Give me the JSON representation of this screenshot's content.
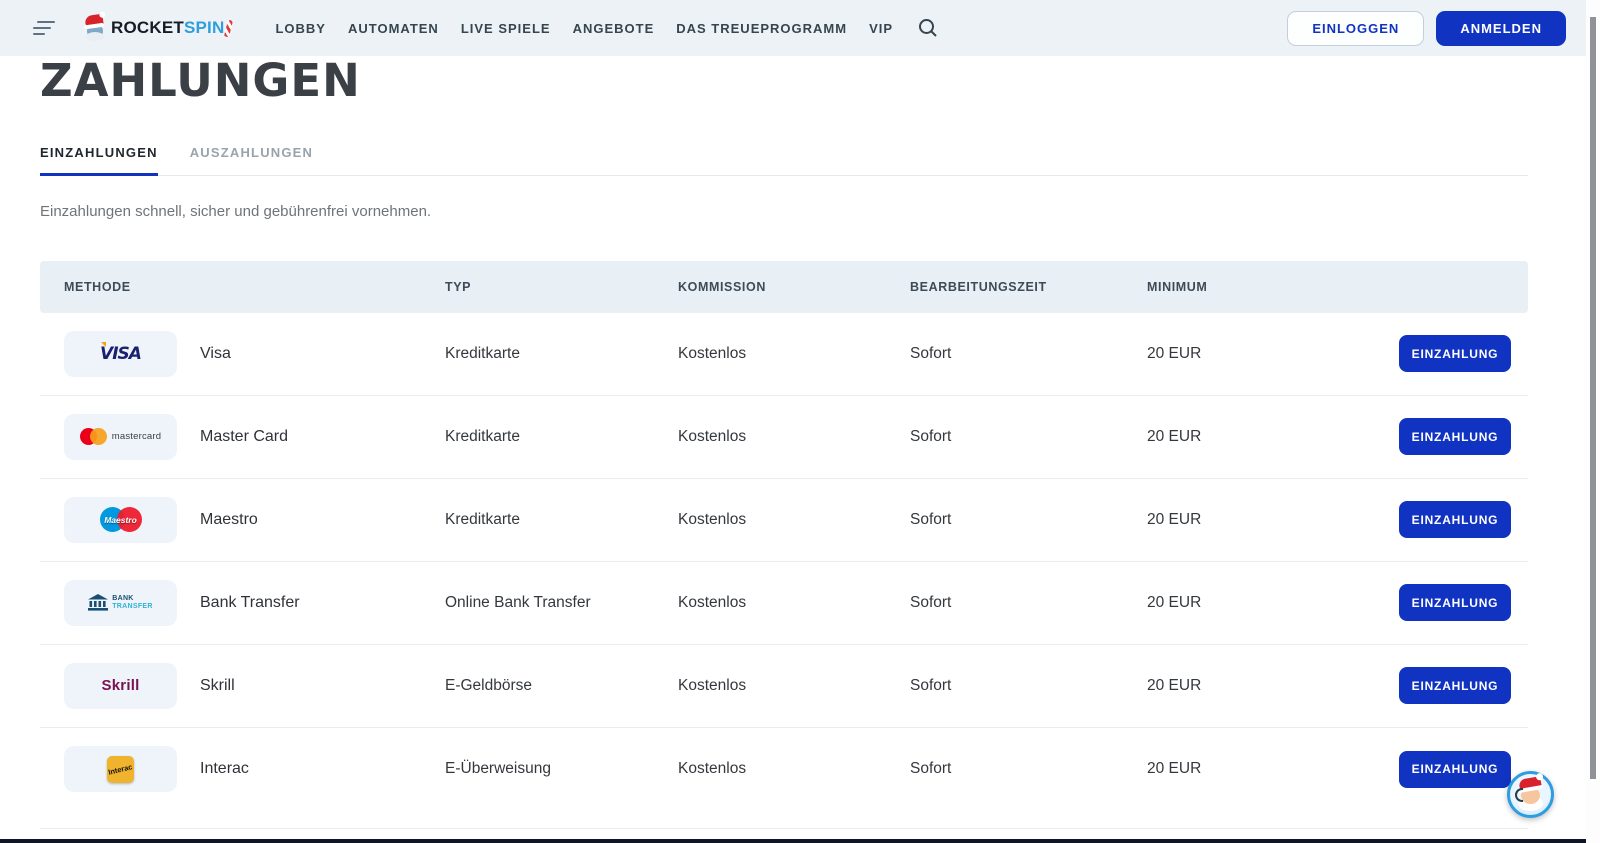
{
  "header": {
    "logo": {
      "mascot": "santa-mascot",
      "brand_primary": "ROCKET",
      "brand_secondary": "SPIN"
    },
    "nav_items": [
      "LOBBY",
      "AUTOMATEN",
      "LIVE SPIELE",
      "ANGEBOTE",
      "DAS TREUEPROGRAMM",
      "VIP"
    ],
    "login_label": "EINLOGGEN",
    "signup_label": "ANMELDEN"
  },
  "page": {
    "title": "ZAHLUNGEN",
    "tabs": [
      {
        "label": "EINZAHLUNGEN",
        "active": true
      },
      {
        "label": "AUSZAHLUNGEN",
        "active": false
      }
    ],
    "description": "Einzahlungen schnell, sicher und gebührenfrei vornehmen."
  },
  "table": {
    "columns": [
      "METHODE",
      "TYP",
      "KOMMISSION",
      "BEARBEITUNGSZEIT",
      "MINIMUM"
    ],
    "action_label": "EINZAHLUNG",
    "rows": [
      {
        "icon": "visa",
        "method": "Visa",
        "type": "Kreditkarte",
        "commission": "Kostenlos",
        "processing_time": "Sofort",
        "minimum": "20 EUR"
      },
      {
        "icon": "mastercard",
        "method": "Master Card",
        "type": "Kreditkarte",
        "commission": "Kostenlos",
        "processing_time": "Sofort",
        "minimum": "20 EUR"
      },
      {
        "icon": "maestro",
        "method": "Maestro",
        "type": "Kreditkarte",
        "commission": "Kostenlos",
        "processing_time": "Sofort",
        "minimum": "20 EUR"
      },
      {
        "icon": "bank-transfer",
        "method": "Bank Transfer",
        "type": "Online Bank Transfer",
        "commission": "Kostenlos",
        "processing_time": "Sofort",
        "minimum": "20 EUR"
      },
      {
        "icon": "skrill",
        "method": "Skrill",
        "type": "E-Geldbörse",
        "commission": "Kostenlos",
        "processing_time": "Sofort",
        "minimum": "20 EUR"
      },
      {
        "icon": "interac",
        "method": "Interac",
        "type": "E-Überweisung",
        "commission": "Kostenlos",
        "processing_time": "Sofort",
        "minimum": "20 EUR"
      }
    ],
    "icon_labels": {
      "bank_line1": "BANK",
      "bank_line2": "TRANSFER",
      "visa": "VISA",
      "mastercard": "mastercard",
      "maestro": "Maestro",
      "skrill": "Skrill",
      "interac": "Interac"
    }
  },
  "colors": {
    "accent_blue": "#1133c1",
    "header_bg": "#edf2f6",
    "table_header_bg": "#e8f0f6",
    "icon_tile_bg": "#eef4f9",
    "visa_blue": "#1a1f71",
    "mastercard_red": "#eb001b",
    "mastercard_orange": "#f79e1b",
    "maestro_blue": "#0099df",
    "maestro_red": "#ed1c2e",
    "skrill_purple": "#7a1152",
    "interac_yellow": "#f0b32e",
    "bank_navy": "#1b4e74",
    "bank_cyan": "#2fb2d6"
  }
}
